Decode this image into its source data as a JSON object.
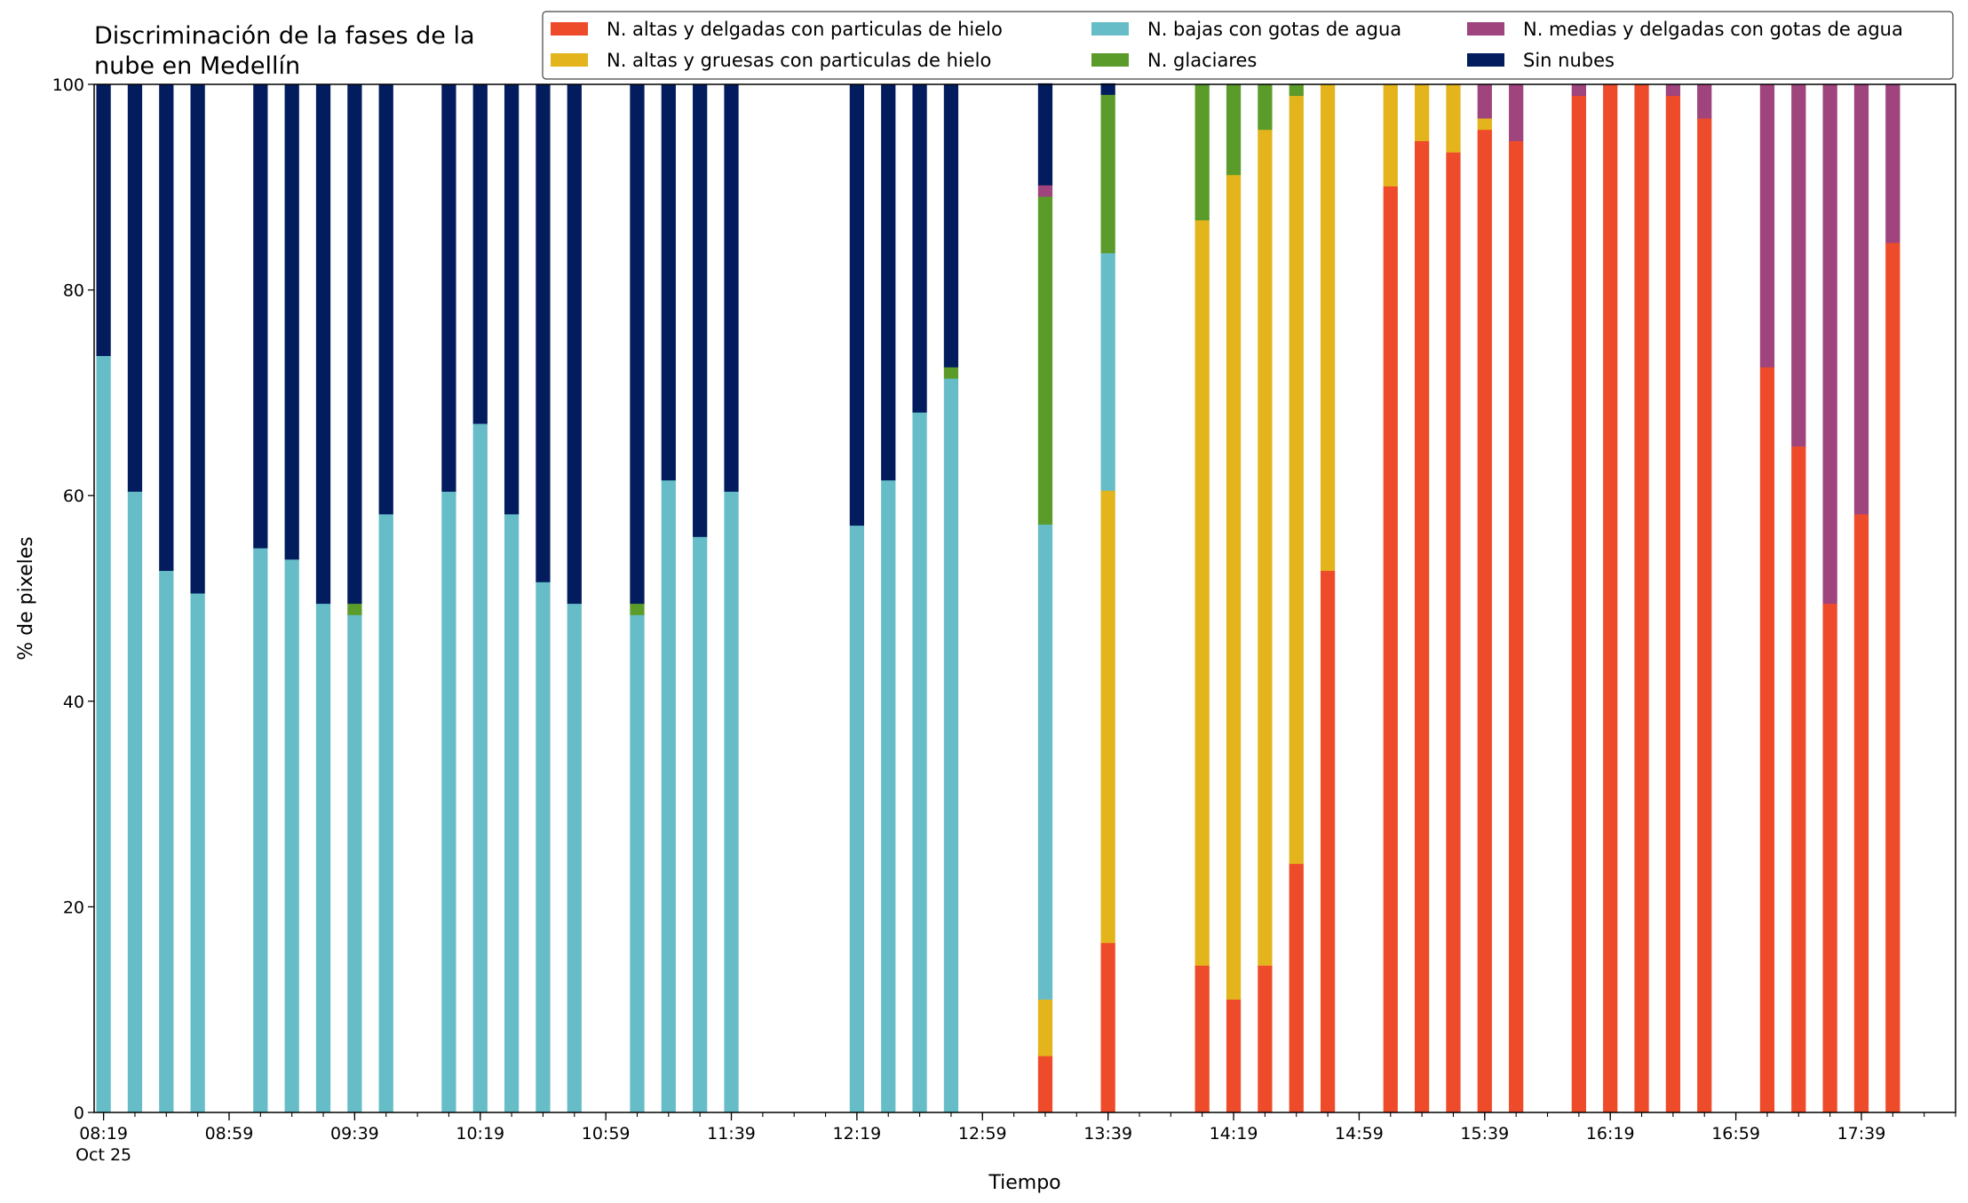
{
  "chart_data": {
    "type": "bar",
    "stacked": true,
    "title_lines": [
      "Discriminación de la fases de la",
      "nube en Medellín"
    ],
    "xlabel": "Tiempo",
    "ylabel": "% de pixeles",
    "ylim": [
      0,
      100
    ],
    "yticks": [
      0,
      20,
      40,
      60,
      80,
      100
    ],
    "x_unit": "minutes since 08:19 (Oct 25)",
    "xlim": [
      -3,
      590
    ],
    "xticks": [
      {
        "x": 0,
        "label": "08:19",
        "sublabel": "Oct 25"
      },
      {
        "x": 40,
        "label": "08:59"
      },
      {
        "x": 80,
        "label": "09:39"
      },
      {
        "x": 120,
        "label": "10:19"
      },
      {
        "x": 160,
        "label": "10:59"
      },
      {
        "x": 200,
        "label": "11:39"
      },
      {
        "x": 240,
        "label": "12:19"
      },
      {
        "x": 280,
        "label": "12:59"
      },
      {
        "x": 320,
        "label": "13:39"
      },
      {
        "x": 360,
        "label": "14:19"
      },
      {
        "x": 400,
        "label": "14:59"
      },
      {
        "x": 440,
        "label": "15:39"
      },
      {
        "x": 480,
        "label": "16:19"
      },
      {
        "x": 520,
        "label": "16:59"
      },
      {
        "x": 560,
        "label": "17:39"
      }
    ],
    "minor_tick_step": 10,
    "grid": false,
    "legend_position": "top-right",
    "legend_columns": 3,
    "legend_order": [
      0,
      1,
      2,
      3,
      4,
      5
    ],
    "bar_width": 4.6,
    "x": [
      0,
      10,
      20,
      30,
      50,
      60,
      70,
      80,
      90,
      110,
      120,
      130,
      140,
      150,
      170,
      180,
      190,
      200,
      240,
      250,
      260,
      270,
      300,
      320,
      350,
      360,
      370,
      380,
      390,
      410,
      420,
      430,
      440,
      450,
      470,
      480,
      490,
      500,
      510,
      530,
      540,
      550,
      560,
      570
    ],
    "series": [
      {
        "name": "N. altas y delgadas con particulas de hielo",
        "color": "#ee4b2b",
        "values": [
          0,
          0,
          0,
          0,
          0,
          0,
          0,
          0,
          0,
          0,
          0,
          0,
          0,
          0,
          0,
          0,
          0,
          0,
          0,
          0,
          0,
          0,
          5.5,
          16.5,
          14.3,
          11,
          14.3,
          24.2,
          52.7,
          90.1,
          94.5,
          93.4,
          95.6,
          94.5,
          98.9,
          100,
          100,
          98.9,
          96.7,
          72.5,
          64.8,
          49.5,
          58.2,
          84.6
        ]
      },
      {
        "name": "N. altas y gruesas con particulas de hielo",
        "color": "#e3b41b",
        "values": [
          0,
          0,
          0,
          0,
          0,
          0,
          0,
          0,
          0,
          0,
          0,
          0,
          0,
          0,
          0,
          0,
          0,
          0,
          0,
          0,
          0,
          0,
          5.5,
          44,
          72.5,
          80.2,
          81.3,
          74.7,
          47.3,
          9.9,
          5.5,
          6.6,
          1.1,
          0,
          0,
          0,
          0,
          0,
          0,
          0,
          0,
          0,
          0,
          0
        ]
      },
      {
        "name": "N. bajas con gotas de agua",
        "color": "#66bdc8",
        "values": [
          73.6,
          60.4,
          52.7,
          50.5,
          54.9,
          53.8,
          49.5,
          48.4,
          58.2,
          60.4,
          67,
          58.2,
          51.6,
          49.5,
          48.4,
          61.5,
          56,
          60.4,
          57.1,
          61.5,
          68.1,
          71.4,
          46.2,
          23.1,
          0,
          0,
          0,
          0,
          0,
          0,
          0,
          0,
          0,
          0,
          0,
          0,
          0,
          0,
          0,
          0,
          0,
          0,
          0,
          0
        ]
      },
      {
        "name": "N. glaciares",
        "color": "#5b9b2a",
        "values": [
          0,
          0,
          0,
          0,
          0,
          0,
          0,
          1.1,
          0,
          0,
          0,
          0,
          0,
          0,
          1.1,
          0,
          0,
          0,
          0,
          0,
          0,
          1.1,
          31.9,
          15.4,
          13.2,
          8.8,
          4.4,
          1.1,
          0,
          0,
          0,
          0,
          0,
          0,
          0,
          0,
          0,
          0,
          0,
          0,
          0,
          0,
          0,
          0
        ]
      },
      {
        "name": "N. medias y delgadas con gotas de agua",
        "color": "#9f447c",
        "values": [
          0,
          0,
          0,
          0,
          0,
          0,
          0,
          0,
          0,
          0,
          0,
          0,
          0,
          0,
          0,
          0,
          0,
          0,
          0,
          0,
          0,
          0,
          1.1,
          0,
          0,
          0,
          0,
          0,
          0,
          0,
          0,
          0,
          3.3,
          5.5,
          1.1,
          0,
          0,
          1.1,
          3.3,
          27.5,
          35.2,
          50.5,
          41.8,
          15.4
        ]
      },
      {
        "name": "Sin nubes",
        "color": "#021c5e",
        "values": [
          26.4,
          39.6,
          47.3,
          49.5,
          45.1,
          46.2,
          50.5,
          50.5,
          41.8,
          39.6,
          33,
          41.8,
          48.4,
          50.5,
          50.5,
          38.5,
          44,
          39.6,
          42.9,
          38.5,
          31.9,
          27.5,
          9.9,
          1.1,
          0,
          0,
          0,
          0,
          0,
          0,
          0,
          0,
          0,
          0,
          0,
          0,
          0,
          0,
          0,
          0,
          0,
          0,
          0,
          0
        ]
      }
    ]
  }
}
